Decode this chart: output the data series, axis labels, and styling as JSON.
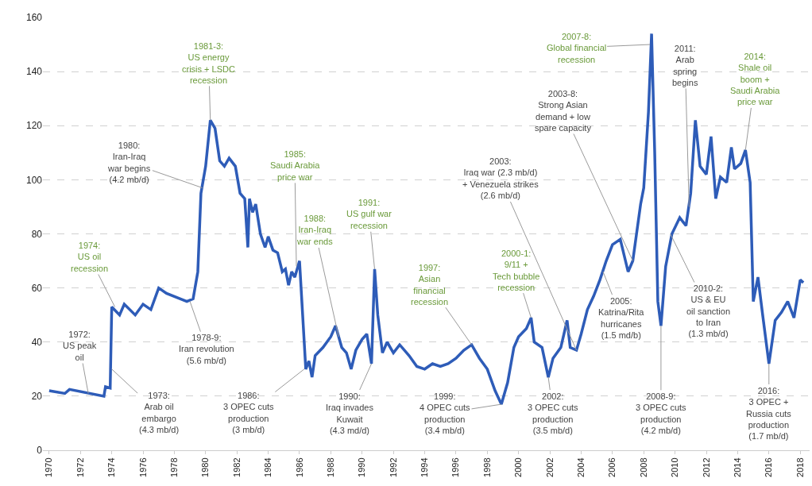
{
  "chart_data": {
    "type": "line",
    "x": [
      1970,
      1971,
      1971.3,
      1973.5,
      1973.6,
      1973.9,
      1974.0,
      1974.5,
      1974.8,
      1975.5,
      1976,
      1976.5,
      1977,
      1977.5,
      1978.8,
      1979.2,
      1979.5,
      1979.7,
      1980,
      1980.3,
      1980.6,
      1980.9,
      1981.2,
      1981.5,
      1981.9,
      1982.2,
      1982.5,
      1982.7,
      1982.8,
      1983,
      1983.2,
      1983.5,
      1983.8,
      1984,
      1984.3,
      1984.6,
      1984.9,
      1985.1,
      1985.3,
      1985.5,
      1985.7,
      1986,
      1986.2,
      1986.4,
      1986.6,
      1986.8,
      1987,
      1987.5,
      1988,
      1988.3,
      1988.7,
      1989,
      1989.3,
      1989.6,
      1990,
      1990.3,
      1990.6,
      1990.8,
      1991.0,
      1991.3,
      1991.6,
      1992,
      1992.4,
      1993,
      1993.5,
      1994,
      1994.5,
      1995,
      1995.5,
      1996,
      1996.5,
      1997,
      1997.5,
      1998,
      1998.5,
      1998.9,
      1999.3,
      1999.7,
      2000,
      2000.5,
      2000.8,
      2001,
      2001.5,
      2001.9,
      2002.2,
      2002.7,
      2003.1,
      2003.3,
      2003.7,
      2004,
      2004.4,
      2004.8,
      2005.2,
      2005.6,
      2006,
      2006.5,
      2007,
      2007.3,
      2007.8,
      2008.0,
      2008.3,
      2008.5,
      2008.7,
      2008.9,
      2009.1,
      2009.4,
      2009.8,
      2010.3,
      2010.7,
      2011,
      2011.3,
      2011.6,
      2012,
      2012.3,
      2012.6,
      2012.9,
      2013.3,
      2013.6,
      2013.8,
      2014.2,
      2014.5,
      2014.8,
      2015.0,
      2015.3,
      2015.6,
      2016.0,
      2016.4,
      2016.8,
      2017.2,
      2017.6,
      2018.0,
      2018.2
    ],
    "series": [
      {
        "color": "#2e5cb8",
        "values": [
          22,
          21,
          22.5,
          20,
          23.5,
          23,
          53,
          50,
          54,
          50,
          54,
          52,
          60,
          58,
          55,
          56,
          66,
          95,
          105,
          122,
          119,
          107,
          105,
          108,
          105,
          95,
          93,
          75,
          93,
          88,
          91,
          80,
          75,
          79,
          74,
          73,
          66,
          67,
          61,
          66,
          64,
          70,
          50,
          30,
          33,
          27,
          35,
          38,
          42,
          46,
          38,
          36,
          30,
          37,
          41,
          43,
          32,
          67,
          50,
          36,
          40,
          36,
          39,
          35,
          31,
          30,
          32,
          31,
          32,
          34,
          37,
          39,
          34,
          30,
          22,
          17,
          25,
          38,
          42,
          45,
          49,
          40,
          38,
          27,
          34,
          38,
          48,
          38,
          37,
          43,
          52,
          57,
          63,
          70,
          76,
          78,
          66,
          70,
          91,
          97,
          125,
          154,
          110,
          55,
          46,
          68,
          80,
          86,
          83,
          95,
          122,
          105,
          102,
          116,
          93,
          101,
          99,
          112,
          104,
          106,
          111,
          99,
          55,
          64,
          50,
          32,
          48,
          51,
          55,
          49,
          63,
          62
        ]
      }
    ],
    "xlim": [
      1969.6,
      2018.6
    ],
    "xticks": [
      1970,
      1972,
      1974,
      1976,
      1978,
      1980,
      1982,
      1984,
      1986,
      1988,
      1990,
      1992,
      1994,
      1996,
      1998,
      2000,
      2002,
      2004,
      2006,
      2008,
      2010,
      2012,
      2014,
      2016,
      2018
    ],
    "ylim": [
      0,
      160
    ],
    "yticks": [
      0,
      20,
      40,
      60,
      80,
      100,
      120,
      140,
      160
    ],
    "grid": "y",
    "marker": "none",
    "line_style": "solid",
    "annotations": [
      {
        "text": "1972:\nUS peak\noil",
        "x": 1972.5,
        "y": 21
      },
      {
        "text": "1973:\nArab oil\nembargo\n(4.3 mb/d)",
        "x": 1974,
        "y": 30
      },
      {
        "text": "1974:\nUS oil\nrecession",
        "x": 1974.2,
        "y": 53
      },
      {
        "text": "1978-9:\nIran revolution\n(5.6 mb/d)",
        "x": 1979,
        "y": 55
      },
      {
        "text": "1980:\nIran-Iraq\nwar begins\n(4.2 mb/d)",
        "x": 1979.8,
        "y": 97
      },
      {
        "text": "1981-3:\nUS energy\ncrisis + LSDC\nrecession",
        "x": 1980.3,
        "y": 122
      },
      {
        "text": "1985:\nSaudi Arabia\nprice war",
        "x": 1985.8,
        "y": 68
      },
      {
        "text": "1986:\n3 OPEC cuts\nproduction\n(3 mb/d)",
        "x": 1986.3,
        "y": 30
      },
      {
        "text": "1988:\nIran-Iraq\nwar ends",
        "x": 1988.5,
        "y": 42
      },
      {
        "text": "1990:\nIraq invades\nKuwait\n(4.3 md/d)",
        "x": 1990.6,
        "y": 32
      },
      {
        "text": "1991:\nUS gulf war\nrecession",
        "x": 1990.8,
        "y": 67
      },
      {
        "text": "1997:\nAsian\nfinancial\nrecession",
        "x": 1997,
        "y": 39
      },
      {
        "text": "1999:\n4 OPEC cuts\nproduction\n(3.4 mb/d)",
        "x": 1998.9,
        "y": 17
      },
      {
        "text": "2000-1:\n9/11 +\nTech bubble\nrecession",
        "x": 2000.8,
        "y": 49
      },
      {
        "text": "2002:\n3 OPEC cuts\nproduction\n(3.5 mb/d)",
        "x": 2001.9,
        "y": 27
      },
      {
        "text": "2003:\nIraq war (2.3 mb/d)\n+ Venezuela strikes\n(2.6 mb/d)",
        "x": 2003.7,
        "y": 37
      },
      {
        "text": "2003-8:\nStrong Asian\ndemand + low\nspare capacity",
        "x": 2007.3,
        "y": 70
      },
      {
        "text": "2005:\nKatrina/Rita\nhurricanes\n(1.5 md/b)",
        "x": 2005.4,
        "y": 66
      },
      {
        "text": "2007-8:\nGlobal financial\nrecession",
        "x": 2008.4,
        "y": 150
      },
      {
        "text": "2008-9:\n3 OPEC cuts\nproduction\n(4.2 mb/d)",
        "x": 2009.1,
        "y": 46
      },
      {
        "text": "2010-2:\nUS & EU\noil sanction\nto Iran\n(1.3 mb/d)",
        "x": 2009.7,
        "y": 80
      },
      {
        "text": "2011:\nArab\nspring\nbegins",
        "x": 2010.9,
        "y": 90
      },
      {
        "text": "2014:\nShale oil\nboom +\nSaudi Arabia\nprice war",
        "x": 2014.5,
        "y": 111
      },
      {
        "text": "2016:\n3 OPEC +\nRussia cuts\nproduction\n(1.7 mb/d)",
        "x": 2016,
        "y": 32
      }
    ]
  }
}
